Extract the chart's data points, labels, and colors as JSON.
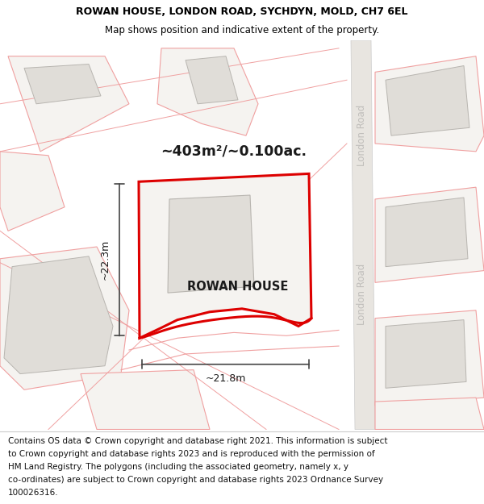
{
  "title_line1": "ROWAN HOUSE, LONDON ROAD, SYCHDYN, MOLD, CH7 6EL",
  "title_line2": "Map shows position and indicative extent of the property.",
  "property_label": "ROWAN HOUSE",
  "area_label": "~403m²/~0.100ac.",
  "dim_width": "~21.8m",
  "dim_height": "~22.3m",
  "road_label_top": "London Road",
  "road_label_bottom": "London Road",
  "footer_lines": [
    "Contains OS data © Crown copyright and database right 2021. This information is subject",
    "to Crown copyright and database rights 2023 and is reproduced with the permission of",
    "HM Land Registry. The polygons (including the associated geometry, namely x, y",
    "co-ordinates) are subject to Crown copyright and database rights 2023 Ordnance Survey",
    "100026316."
  ],
  "map_bg": "#ffffff",
  "property_fill": "#f5f3f0",
  "property_edge": "#dd0000",
  "building_fill": "#e0ddd8",
  "building_edge": "#b8b5b0",
  "nearby_fill": "#f5f3f0",
  "nearby_edge": "#f0a0a0",
  "road_fill": "#e8e5e0",
  "road_edge": "#cccccc",
  "dim_line_color": "#444444",
  "title_fontsize": 9.0,
  "subtitle_fontsize": 8.5,
  "label_fontsize": 10.5,
  "area_fontsize": 12.5,
  "dim_fontsize": 9.0,
  "road_fontsize": 8.5,
  "footer_fontsize": 7.5
}
